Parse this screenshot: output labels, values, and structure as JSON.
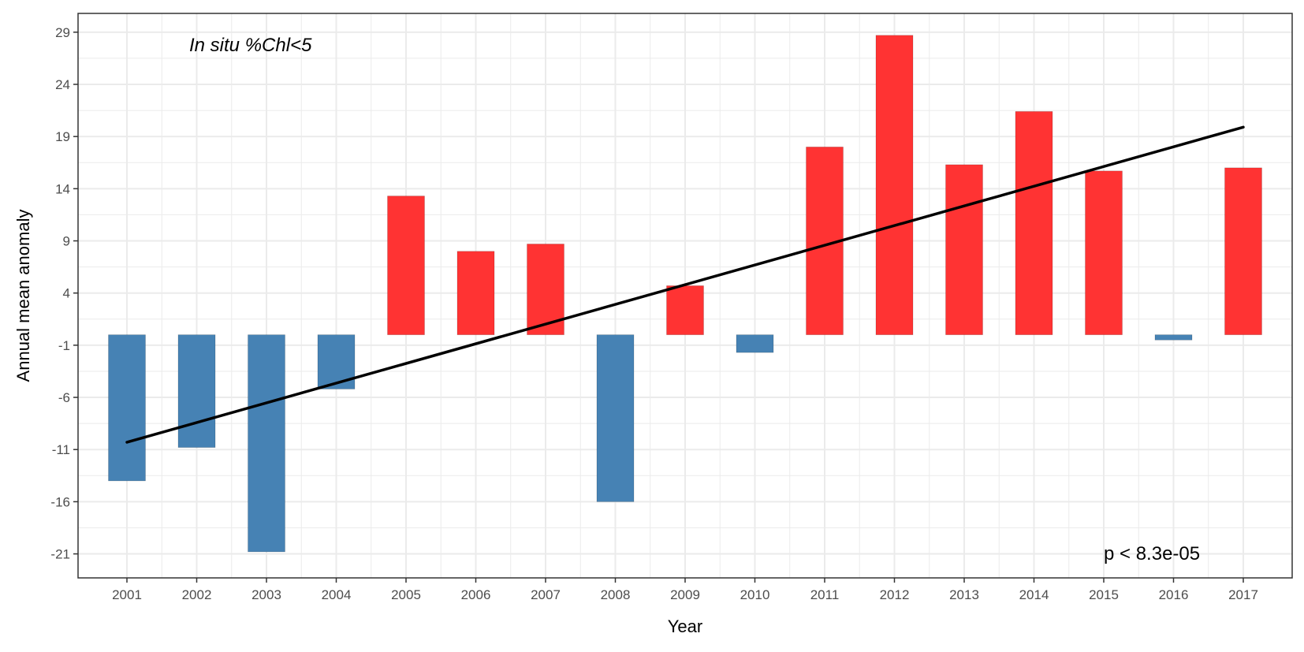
{
  "chart_data": {
    "type": "bar",
    "annotation": "In situ %Chl<5",
    "p_value_label": "p < 8.3e-05",
    "xlabel": "Year",
    "ylabel": "Annual mean anomaly",
    "categories": [
      "2001",
      "2002",
      "2003",
      "2004",
      "2005",
      "2006",
      "2007",
      "2008",
      "2009",
      "2010",
      "2011",
      "2012",
      "2013",
      "2014",
      "2015",
      "2016",
      "2017"
    ],
    "values": [
      -14.0,
      -10.8,
      -20.8,
      -5.2,
      13.3,
      8.0,
      8.7,
      -16.0,
      4.7,
      -1.7,
      18.0,
      28.7,
      16.3,
      21.4,
      15.7,
      -0.5,
      16.0
    ],
    "trend_line": {
      "x_start": "2001",
      "y_start": -10.3,
      "x_end": "2017",
      "y_end": 19.9
    },
    "yticks": [
      -21,
      -16,
      -11,
      -6,
      -1,
      4,
      9,
      14,
      19,
      24,
      29
    ],
    "ylim": [
      -23.3,
      30.8
    ],
    "grid": true,
    "colors": {
      "positive": "#ff3333",
      "negative": "#4682b4",
      "trend": "#000000",
      "grid": "#ebebeb",
      "border": "#333333"
    }
  }
}
